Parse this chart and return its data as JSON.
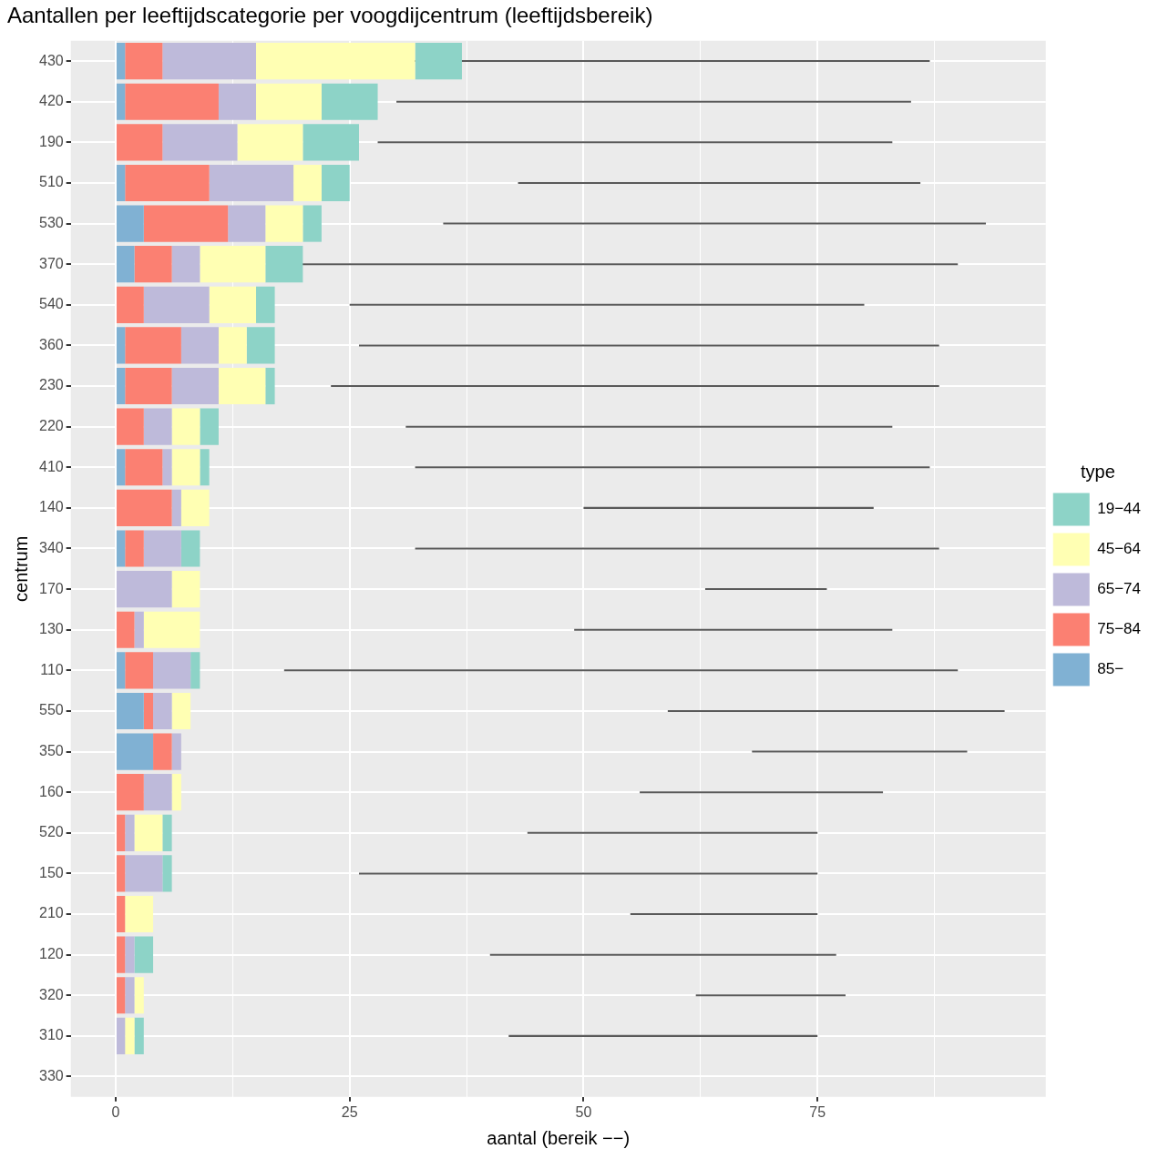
{
  "chart_data": {
    "type": "bar",
    "orientation": "horizontal",
    "title": "Aantallen per leeftijdscategorie per voogdijcentrum (leeftijdsbereik)",
    "xlabel": "aantal (bereik −−)",
    "ylabel": "centrum",
    "legend_title": "type",
    "legend": "right",
    "grid": true,
    "categories": [
      "430",
      "420",
      "190",
      "510",
      "530",
      "370",
      "540",
      "360",
      "230",
      "220",
      "410",
      "140",
      "340",
      "170",
      "130",
      "110",
      "550",
      "350",
      "160",
      "520",
      "150",
      "210",
      "120",
      "320",
      "310",
      "330"
    ],
    "xlim": [
      -4.8,
      99.4
    ],
    "xticks": [
      0,
      {
        "value": 12.5,
        "label": null
      },
      25,
      {
        "value": 37.5,
        "label": null
      },
      50,
      {
        "value": 62.5,
        "label": null
      },
      75,
      {
        "value": 87.5,
        "label": null
      }
    ],
    "series": [
      {
        "name": "85−",
        "color": "#80b1d3",
        "base": [
          0,
          0,
          null,
          0,
          0,
          0,
          null,
          0,
          0,
          null,
          0,
          null,
          0,
          null,
          null,
          0,
          0,
          0,
          null,
          null,
          null,
          null,
          null,
          null,
          null,
          null
        ],
        "values": [
          1,
          1,
          null,
          1,
          3,
          2,
          null,
          1,
          1,
          null,
          1,
          null,
          1,
          null,
          null,
          1,
          3,
          4,
          null,
          null,
          null,
          null,
          null,
          null,
          null,
          null
        ]
      },
      {
        "name": "75−84",
        "color": "#fb8072",
        "base": [
          1,
          1,
          0,
          1,
          3,
          2,
          0,
          1,
          1,
          0,
          1,
          0,
          1,
          null,
          0,
          1,
          3,
          4,
          0,
          0,
          0,
          0,
          0,
          0,
          null,
          null
        ],
        "values": [
          4,
          10,
          5,
          9,
          9,
          4,
          3,
          6,
          5,
          3,
          4,
          6,
          2,
          null,
          2,
          3,
          1,
          2,
          3,
          1,
          1,
          1,
          1,
          1,
          null,
          null
        ]
      },
      {
        "name": "65−74",
        "color": "#bebada",
        "base": [
          5,
          11,
          5,
          10,
          12,
          6,
          3,
          7,
          6,
          3,
          5,
          6,
          3,
          0,
          2,
          4,
          4,
          6,
          3,
          1,
          1,
          null,
          1,
          1,
          0,
          null
        ],
        "values": [
          10,
          4,
          8,
          9,
          4,
          3,
          7,
          4,
          5,
          3,
          1,
          1,
          4,
          6,
          1,
          4,
          2,
          1,
          3,
          1,
          4,
          null,
          1,
          1,
          1,
          null
        ]
      },
      {
        "name": "45−64",
        "color": "#ffffb3",
        "base": [
          15,
          15,
          13,
          19,
          16,
          9,
          10,
          11,
          11,
          6,
          6,
          7,
          null,
          6,
          3,
          null,
          6,
          null,
          6,
          2,
          null,
          1,
          null,
          2,
          1,
          null
        ],
        "values": [
          17,
          7,
          7,
          3,
          4,
          7,
          5,
          3,
          5,
          3,
          3,
          3,
          null,
          3,
          6,
          null,
          2,
          null,
          1,
          3,
          null,
          3,
          null,
          1,
          1,
          null
        ]
      },
      {
        "name": "19−44",
        "color": "#8dd3c7",
        "base": [
          32,
          22,
          20,
          22,
          20,
          16,
          15,
          14,
          16,
          9,
          9,
          null,
          7,
          null,
          null,
          8,
          null,
          null,
          null,
          5,
          5,
          null,
          2,
          null,
          2,
          null
        ],
        "values": [
          5,
          6,
          6,
          3,
          2,
          4,
          2,
          3,
          1,
          2,
          1,
          null,
          2,
          null,
          null,
          1,
          null,
          null,
          null,
          1,
          1,
          null,
          2,
          null,
          1,
          null
        ]
      },
      {
        "type": "bar",
        "color": "#595959",
        "base": [
          22,
          30,
          28,
          43,
          35,
          19,
          25,
          26,
          23,
          31,
          32,
          50,
          32,
          63,
          49,
          18,
          59,
          68,
          56,
          44,
          26,
          55,
          40,
          62,
          42,
          null
        ],
        "values": [
          65,
          55,
          55,
          43,
          58,
          71,
          55,
          62,
          65,
          52,
          55,
          31,
          56,
          13,
          34,
          72,
          36,
          23,
          26,
          31,
          49,
          20,
          37,
          16,
          33,
          null
        ]
      }
    ]
  }
}
